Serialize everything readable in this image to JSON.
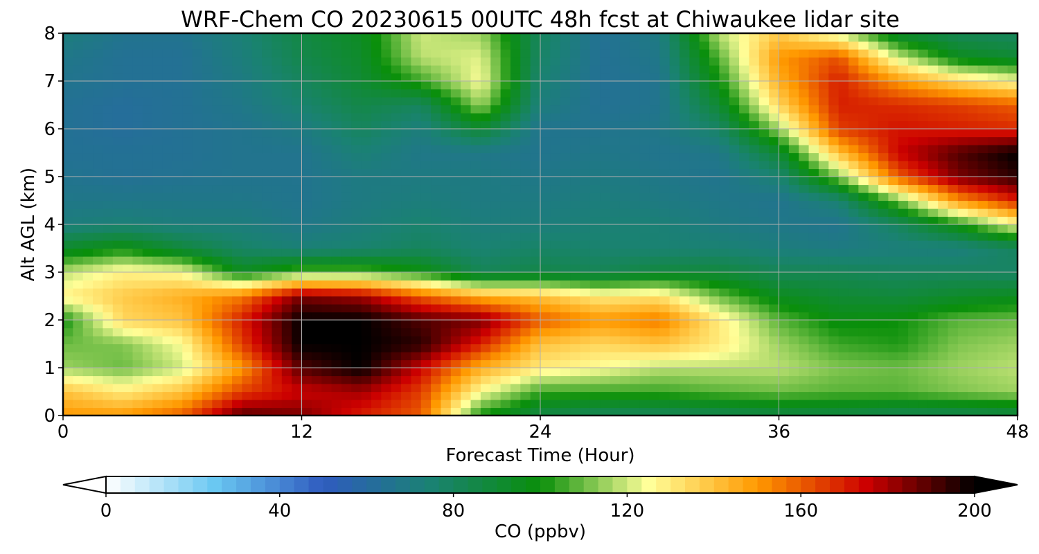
{
  "chart_data": {
    "type": "heatmap",
    "title": "WRF-Chem CO  20230615 00UTC 48h fcst at Chiwaukee lidar site",
    "xlabel": "Forecast Time (Hour)",
    "ylabel": "Alt AGL (km)",
    "xlim": [
      0,
      48
    ],
    "ylim": [
      0,
      8
    ],
    "xticks": [
      "0",
      "12",
      "24",
      "36",
      "48"
    ],
    "yticks": [
      "0",
      "1",
      "2",
      "3",
      "4",
      "5",
      "6",
      "7",
      "8"
    ],
    "grid": true,
    "x": [
      0,
      3,
      6,
      9,
      12,
      15,
      18,
      21,
      24,
      27,
      30,
      33,
      36,
      39,
      42,
      45,
      48
    ],
    "y": [
      0,
      0.5,
      1,
      1.5,
      2,
      2.5,
      3,
      3.5,
      4,
      4.5,
      5,
      5.5,
      6,
      6.5,
      7,
      7.5,
      8
    ],
    "z": [
      [
        150,
        150,
        160,
        190,
        185,
        170,
        160,
        100,
        85,
        80,
        80,
        82,
        85,
        85,
        82,
        82,
        85
      ],
      [
        140,
        130,
        140,
        165,
        175,
        180,
        165,
        125,
        105,
        105,
        105,
        108,
        110,
        108,
        108,
        112,
        115
      ],
      [
        115,
        110,
        120,
        150,
        190,
        200,
        175,
        145,
        130,
        125,
        118,
        118,
        118,
        112,
        110,
        115,
        118
      ],
      [
        110,
        112,
        125,
        165,
        200,
        200,
        195,
        170,
        140,
        135,
        140,
        130,
        115,
        105,
        102,
        112,
        115
      ],
      [
        100,
        135,
        140,
        170,
        200,
        200,
        190,
        185,
        160,
        150,
        155,
        130,
        108,
        98,
        100,
        108,
        110
      ],
      [
        128,
        138,
        145,
        155,
        185,
        180,
        160,
        145,
        140,
        130,
        132,
        110,
        95,
        90,
        88,
        92,
        95
      ],
      [
        118,
        128,
        125,
        95,
        108,
        108,
        100,
        82,
        85,
        82,
        88,
        88,
        82,
        82,
        80,
        80,
        78
      ],
      [
        92,
        100,
        88,
        78,
        74,
        76,
        80,
        75,
        78,
        76,
        75,
        75,
        72,
        70,
        72,
        72,
        80
      ],
      [
        72,
        74,
        72,
        72,
        68,
        72,
        76,
        72,
        72,
        74,
        74,
        70,
        68,
        66,
        80,
        100,
        125
      ],
      [
        68,
        68,
        68,
        68,
        66,
        70,
        72,
        70,
        70,
        72,
        70,
        68,
        66,
        75,
        110,
        150,
        170
      ],
      [
        66,
        64,
        65,
        66,
        66,
        70,
        70,
        70,
        68,
        70,
        68,
        66,
        75,
        112,
        160,
        185,
        195
      ],
      [
        64,
        64,
        64,
        66,
        66,
        74,
        68,
        68,
        66,
        68,
        66,
        68,
        90,
        140,
        175,
        190,
        200
      ],
      [
        64,
        62,
        64,
        66,
        70,
        80,
        72,
        90,
        66,
        66,
        68,
        78,
        115,
        165,
        172,
        170,
        168
      ],
      [
        64,
        62,
        64,
        68,
        76,
        85,
        80,
        115,
        72,
        64,
        66,
        90,
        135,
        170,
        168,
        165,
        160
      ],
      [
        66,
        64,
        64,
        70,
        80,
        90,
        105,
        125,
        75,
        64,
        66,
        100,
        145,
        170,
        150,
        135,
        125
      ],
      [
        68,
        64,
        64,
        72,
        84,
        92,
        118,
        122,
        78,
        64,
        68,
        108,
        150,
        162,
        120,
        95,
        90
      ],
      [
        72,
        66,
        66,
        74,
        86,
        94,
        120,
        115,
        80,
        64,
        70,
        118,
        138,
        120,
        90,
        82,
        80
      ]
    ],
    "colorbar": {
      "label": "CO  (ppbv)",
      "min": 0,
      "max": 200,
      "ticks": [
        "0",
        "40",
        "80",
        "120",
        "160",
        "200"
      ],
      "extend": "both",
      "colors": [
        "#ffffff",
        "#6ac8f2",
        "#2f5bbf",
        "#1a8272",
        "#0a8f0a",
        "#ffff99",
        "#ff9900",
        "#cc0000",
        "#000000"
      ]
    }
  }
}
